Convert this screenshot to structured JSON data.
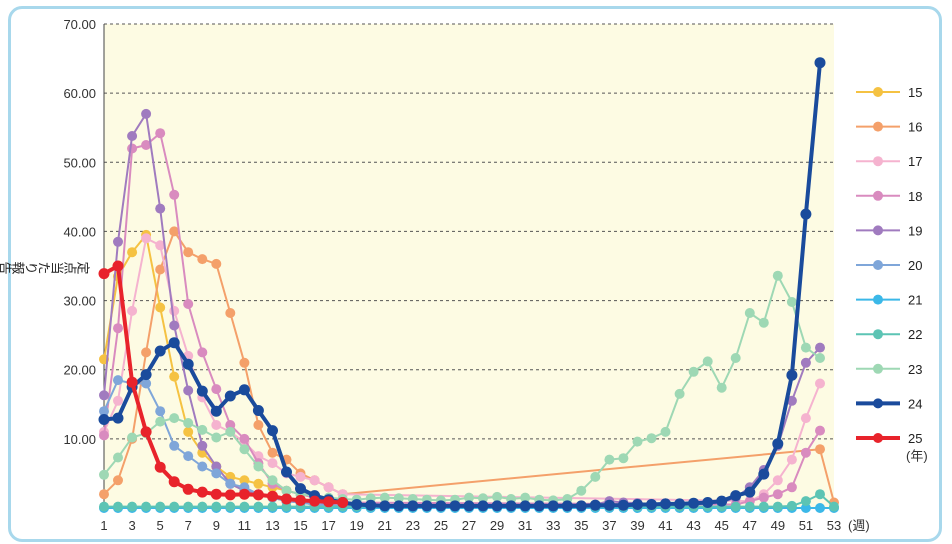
{
  "chart_data": {
    "type": "line",
    "ylabel": "定点当たり報告数",
    "xunit": "(週)",
    "legend_unit": "(年)",
    "ylim": [
      0,
      70
    ],
    "xlim": [
      1,
      53
    ],
    "yticks": [
      "10.00",
      "20.00",
      "30.00",
      "40.00",
      "50.00",
      "60.00",
      "70.00"
    ],
    "xticks": [
      1,
      3,
      5,
      7,
      9,
      11,
      13,
      15,
      17,
      19,
      21,
      23,
      25,
      27,
      29,
      31,
      33,
      35,
      37,
      39,
      41,
      43,
      45,
      47,
      49,
      51,
      53
    ],
    "grid": "horizontal-dashed",
    "legend_position": "right",
    "series": [
      {
        "name": "15",
        "color": "#f5c242",
        "bold": false,
        "x": [
          1,
          2,
          3,
          4,
          5,
          6,
          7,
          8,
          9,
          10,
          11,
          12,
          13,
          14,
          15,
          16,
          17,
          18
        ],
        "y": [
          21.5,
          33.5,
          37,
          39.5,
          29,
          19,
          11,
          8,
          6,
          4.5,
          4,
          3.5,
          3,
          2.5,
          2,
          1.5,
          1,
          0.8
        ]
      },
      {
        "name": "16",
        "color": "#f4a06a",
        "bold": false,
        "x": [
          1,
          2,
          3,
          4,
          5,
          6,
          7,
          8,
          9,
          10,
          11,
          12,
          13,
          14,
          15,
          16,
          17,
          18,
          52,
          53
        ],
        "y": [
          2,
          4,
          10,
          22.5,
          34.5,
          40,
          37,
          36,
          35.3,
          28.2,
          21,
          12,
          8,
          7,
          5,
          4,
          3,
          2,
          8.5,
          0.8
        ]
      },
      {
        "name": "17",
        "color": "#f5b3cf",
        "bold": false,
        "x": [
          1,
          2,
          3,
          4,
          5,
          6,
          7,
          8,
          9,
          10,
          11,
          12,
          13,
          14,
          15,
          16,
          17,
          18,
          47,
          48,
          49,
          50,
          51,
          52
        ],
        "y": [
          11,
          15.5,
          28.5,
          39,
          38,
          28.5,
          22,
          16,
          12,
          11,
          9.5,
          7.5,
          6.5,
          5,
          4.5,
          4,
          3,
          2,
          1,
          2,
          4,
          7,
          13,
          18
        ]
      },
      {
        "name": "18",
        "color": "#d98bbf",
        "bold": false,
        "x": [
          1,
          2,
          3,
          4,
          5,
          6,
          7,
          8,
          9,
          10,
          11,
          12,
          13,
          14,
          15,
          16,
          17,
          18,
          46,
          47,
          48,
          49,
          50,
          51,
          52
        ],
        "y": [
          10.5,
          26,
          52,
          52.5,
          54.2,
          45.3,
          29.5,
          22.5,
          17.2,
          12,
          10,
          6.5,
          3.5,
          2.5,
          2,
          1.5,
          1,
          0.8,
          0.5,
          1,
          1.5,
          2,
          3,
          8,
          11.2
        ]
      },
      {
        "name": "19",
        "color": "#a07bbf",
        "bold": false,
        "x": [
          1,
          2,
          3,
          4,
          5,
          6,
          7,
          8,
          9,
          10,
          11,
          12,
          13,
          14,
          15,
          16,
          17,
          18,
          36,
          37,
          38,
          39,
          40,
          41,
          42,
          43,
          44,
          45,
          46,
          47,
          48,
          49,
          50,
          51,
          52
        ],
        "y": [
          16.3,
          38.5,
          53.8,
          57,
          43.3,
          26.4,
          17,
          9,
          6,
          3.5,
          2.5,
          2,
          1.5,
          1,
          0.8,
          0.5,
          0.5,
          0.3,
          0.5,
          1,
          0.8,
          0.7,
          0.6,
          0.7,
          0.6,
          0.5,
          0.6,
          0.8,
          1.5,
          3,
          5.5,
          9,
          15.5,
          21,
          23.2
        ]
      },
      {
        "name": "20",
        "color": "#7fa6d9",
        "bold": false,
        "x": [
          1,
          2,
          3,
          4,
          5,
          6,
          7,
          8,
          9,
          10,
          11,
          12,
          13,
          14,
          15,
          16,
          17,
          18
        ],
        "y": [
          14,
          18.5,
          18,
          18,
          14,
          9,
          7.5,
          6,
          5,
          3.5,
          3,
          2,
          1.5,
          1,
          0.8,
          0.5,
          0.3,
          0.3
        ]
      },
      {
        "name": "21",
        "color": "#3bb8e8",
        "bold": false,
        "x": [
          1,
          2,
          3,
          4,
          5,
          6,
          7,
          8,
          9,
          10,
          11,
          12,
          13,
          14,
          15,
          16,
          17,
          18,
          19,
          20,
          21,
          22,
          23,
          24,
          25,
          26,
          27,
          28,
          29,
          30,
          31,
          32,
          33,
          34,
          35,
          36,
          37,
          38,
          39,
          40,
          41,
          42,
          43,
          44,
          45,
          46,
          47,
          48,
          49,
          50,
          51,
          52,
          53
        ],
        "y": [
          0,
          0,
          0,
          0,
          0,
          0,
          0,
          0,
          0,
          0,
          0,
          0,
          0,
          0,
          0,
          0,
          0,
          0,
          0,
          0,
          0,
          0,
          0,
          0,
          0,
          0,
          0,
          0,
          0,
          0,
          0,
          0,
          0,
          0,
          0,
          0,
          0,
          0,
          0,
          0,
          0,
          0,
          0,
          0,
          0,
          0,
          0,
          0,
          0,
          0,
          0,
          0,
          0
        ]
      },
      {
        "name": "22",
        "color": "#5cc4b4",
        "bold": false,
        "x": [
          1,
          2,
          3,
          4,
          5,
          6,
          7,
          8,
          9,
          10,
          11,
          12,
          13,
          14,
          15,
          16,
          17,
          18,
          19,
          20,
          21,
          22,
          23,
          24,
          25,
          26,
          27,
          28,
          29,
          30,
          31,
          32,
          33,
          34,
          35,
          36,
          37,
          38,
          39,
          40,
          41,
          42,
          43,
          44,
          45,
          46,
          47,
          48,
          49,
          50,
          51,
          52,
          53
        ],
        "y": [
          0.2,
          0.2,
          0.2,
          0.2,
          0.2,
          0.2,
          0.2,
          0.2,
          0.2,
          0.2,
          0.2,
          0.2,
          0.2,
          0.2,
          0.2,
          0.2,
          0.2,
          0.2,
          0.2,
          0.2,
          0.2,
          0.2,
          0.2,
          0.2,
          0.2,
          0.2,
          0.2,
          0.2,
          0.2,
          0.2,
          0.2,
          0.2,
          0.2,
          0.2,
          0.2,
          0.2,
          0.2,
          0.2,
          0.2,
          0.2,
          0.2,
          0.2,
          0.2,
          0.2,
          0.2,
          0.2,
          0.2,
          0.2,
          0.2,
          0.3,
          1,
          2,
          0.2
        ]
      },
      {
        "name": "23",
        "color": "#9ed8b4",
        "bold": false,
        "x": [
          1,
          2,
          3,
          4,
          5,
          6,
          7,
          8,
          9,
          10,
          11,
          12,
          13,
          14,
          15,
          16,
          17,
          18,
          19,
          20,
          21,
          22,
          23,
          24,
          25,
          26,
          27,
          28,
          29,
          30,
          31,
          32,
          33,
          34,
          35,
          36,
          37,
          38,
          39,
          40,
          41,
          42,
          43,
          44,
          45,
          46,
          47,
          48,
          49,
          50,
          51,
          52
        ],
        "y": [
          4.8,
          7.3,
          10.2,
          10.8,
          12.5,
          13,
          12.3,
          11.3,
          10.2,
          11,
          8.5,
          6,
          4,
          2.5,
          2,
          1.8,
          1.5,
          1.3,
          1.2,
          1.4,
          1.5,
          1.4,
          1.3,
          1.2,
          1.1,
          1.2,
          1.5,
          1.4,
          1.6,
          1.3,
          1.5,
          1.2,
          1.1,
          1.3,
          2.5,
          4.5,
          7,
          7.2,
          9.6,
          10.1,
          11,
          16.5,
          19.7,
          21.2,
          17.4,
          21.7,
          28.2,
          26.8,
          33.6,
          29.8,
          23.2,
          21.7
        ]
      },
      {
        "name": "24",
        "color": "#1a4b9c",
        "bold": true,
        "x": [
          1,
          2,
          3,
          4,
          5,
          6,
          7,
          8,
          9,
          10,
          11,
          12,
          13,
          14,
          15,
          16,
          17,
          18,
          19,
          20,
          21,
          22,
          23,
          24,
          25,
          26,
          27,
          28,
          29,
          30,
          31,
          32,
          33,
          34,
          35,
          36,
          37,
          38,
          39,
          40,
          41,
          42,
          43,
          44,
          45,
          46,
          47,
          48,
          49,
          50,
          51,
          52
        ],
        "y": [
          12.8,
          13,
          17.5,
          19.3,
          22.7,
          23.9,
          20.8,
          16.9,
          14,
          16.2,
          17.1,
          14.1,
          11.2,
          5.2,
          2.8,
          1.8,
          1.2,
          0.8,
          0.5,
          0.4,
          0.3,
          0.3,
          0.3,
          0.3,
          0.3,
          0.3,
          0.3,
          0.3,
          0.3,
          0.3,
          0.3,
          0.3,
          0.3,
          0.3,
          0.3,
          0.4,
          0.4,
          0.4,
          0.5,
          0.5,
          0.6,
          0.6,
          0.7,
          0.8,
          1,
          1.8,
          2.3,
          4.9,
          9.3,
          19.2,
          42.5,
          64.4
        ]
      },
      {
        "name": "25",
        "color": "#e8232b",
        "bold": true,
        "x": [
          1,
          2,
          3,
          4,
          5,
          6,
          7,
          8,
          9,
          10,
          11,
          12,
          13,
          14,
          15,
          16,
          17,
          18
        ],
        "y": [
          33.9,
          35,
          18.2,
          11,
          5.9,
          3.8,
          2.7,
          2.3,
          2,
          1.9,
          2,
          1.9,
          1.7,
          1.3,
          1.1,
          1,
          0.9,
          0.8
        ]
      }
    ]
  }
}
